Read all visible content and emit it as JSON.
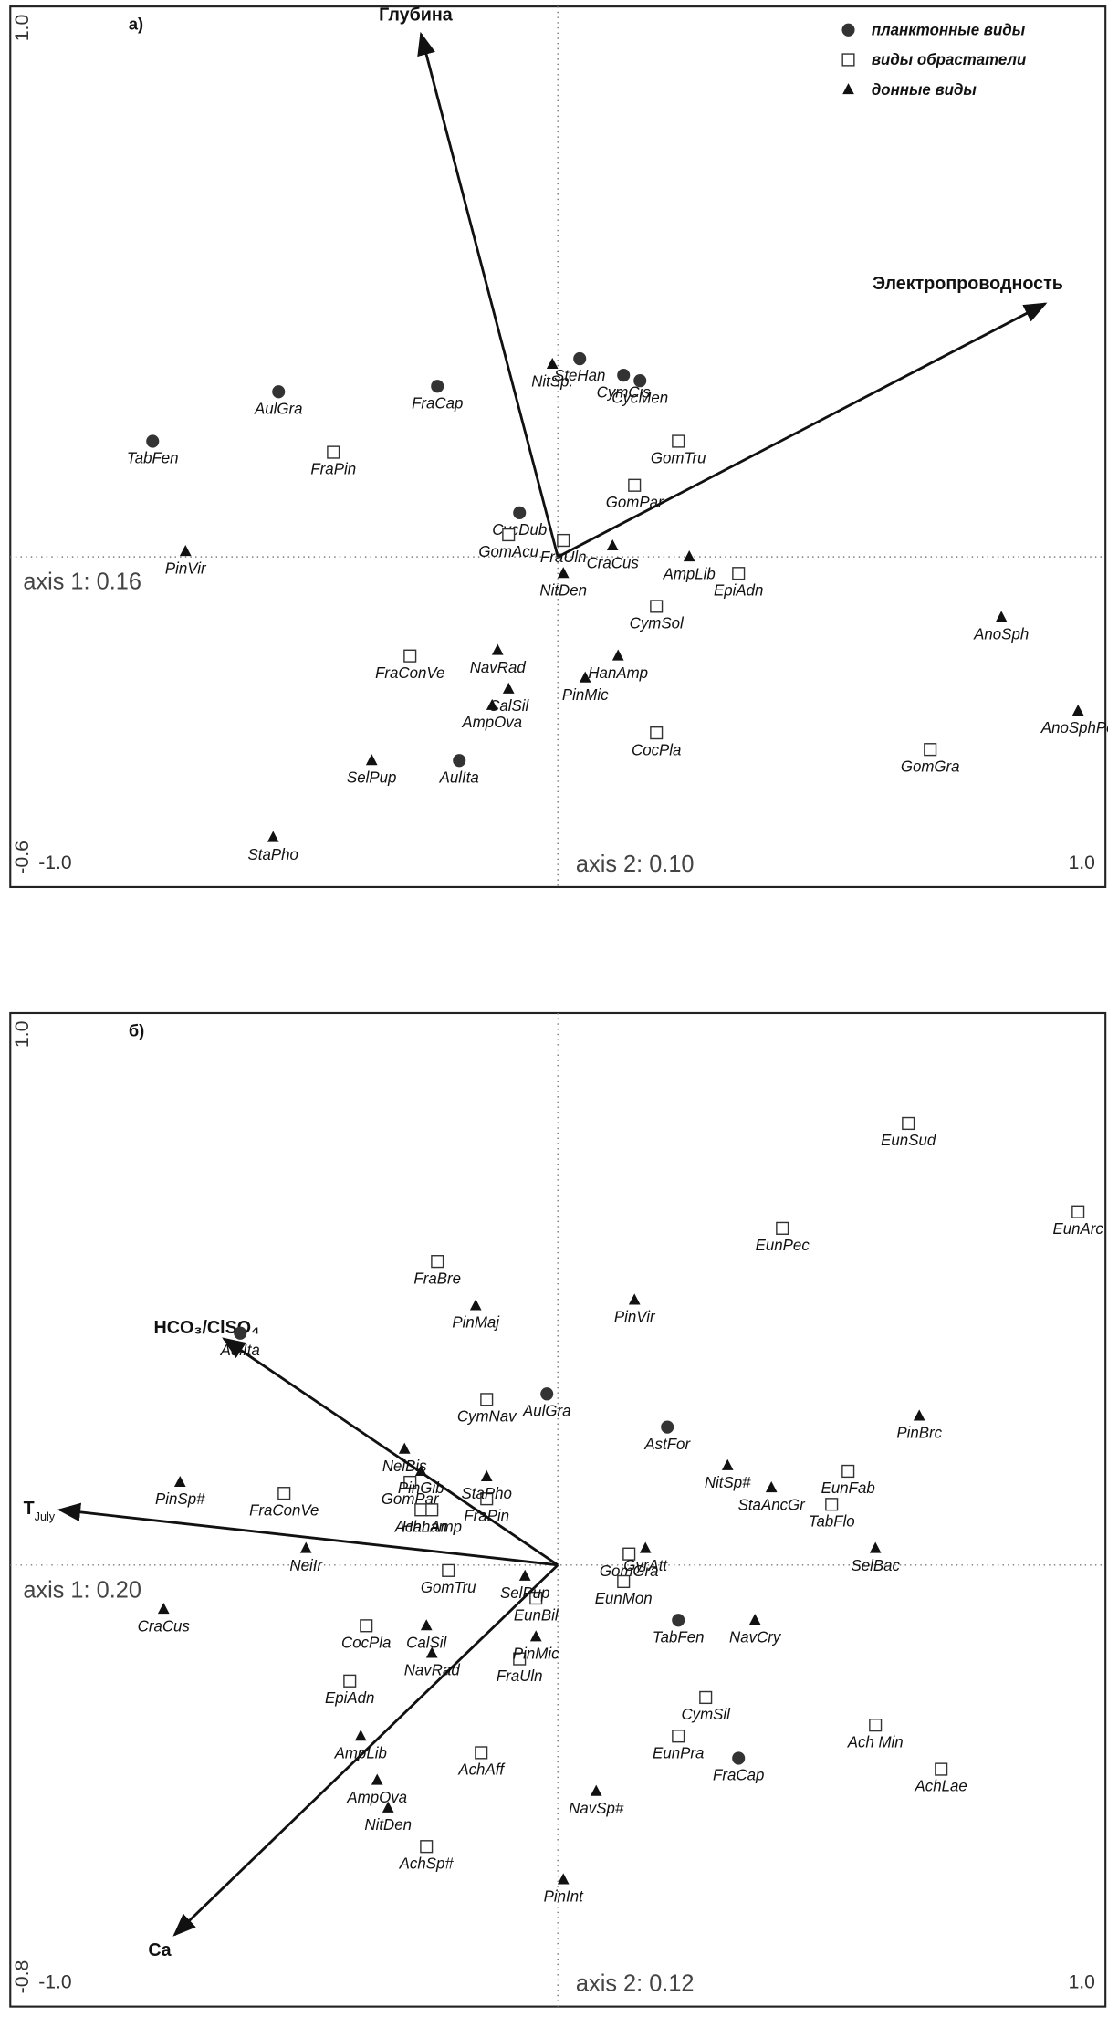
{
  "chart_data": [
    {
      "type": "scatter",
      "panel_label": "а)",
      "axis_labels": [
        "axis 1: 0.16",
        "axis 2: 0.10"
      ],
      "xlim": [
        -1.0,
        1.0
      ],
      "ylim": [
        -0.6,
        1.0
      ],
      "xticks": [
        {
          "value": -1.0,
          "label": "-1.0"
        },
        {
          "value": 1.0,
          "label": "1.0"
        }
      ],
      "yticks": [
        -0.6,
        {
          "value": 1.0,
          "label": "1.0"
        }
      ],
      "legend": "upper right",
      "series": [
        {
          "name": "планктонные виды",
          "marker": "circle",
          "color": "#333333",
          "labels": [
            "AulGra",
            "TabFen",
            "FraCap",
            "SteHan",
            "CymCis",
            "CycMen",
            "CycDub",
            "AulIta"
          ],
          "x": [
            -0.51,
            -0.74,
            -0.22,
            0.04,
            0.12,
            0.15,
            -0.07,
            -0.18
          ],
          "y": [
            0.3,
            0.21,
            0.31,
            0.36,
            0.33,
            0.32,
            0.08,
            -0.37
          ]
        },
        {
          "name": "виды обрастатели",
          "marker": "square",
          "color": "#333333",
          "labels": [
            "FraPin",
            "GomTru",
            "GomPar",
            "GomAcu",
            "FraUln",
            "EpiAdn",
            "CymSol",
            "FraConVe",
            "CocPla",
            "GomGra"
          ],
          "x": [
            -0.41,
            0.22,
            0.14,
            -0.09,
            0.01,
            0.33,
            0.18,
            -0.27,
            0.18,
            0.68
          ],
          "y": [
            0.19,
            0.21,
            0.13,
            0.04,
            0.03,
            -0.03,
            -0.09,
            -0.18,
            -0.32,
            -0.35
          ]
        },
        {
          "name": "донные виды",
          "marker": "triangle",
          "color": "#111111",
          "labels": [
            "NitSp.",
            "PinVir",
            "CraCus",
            "AmpLib",
            "NitDen",
            "AnoSph",
            "NavRad",
            "HanAmp",
            "PinMic",
            "CalSil",
            "AmpOva",
            "AnoSphPo",
            "SelPup",
            "StaPho"
          ],
          "x": [
            -0.01,
            -0.68,
            0.1,
            0.24,
            0.01,
            0.81,
            -0.11,
            0.11,
            0.05,
            -0.09,
            -0.12,
            0.95,
            -0.34,
            -0.52
          ],
          "y": [
            0.35,
            0.01,
            0.02,
            0.0,
            -0.03,
            -0.11,
            -0.17,
            -0.18,
            -0.22,
            -0.24,
            -0.27,
            -0.28,
            -0.37,
            -0.51
          ]
        }
      ],
      "arrows": [
        {
          "label": "Глубина",
          "x": -0.25,
          "y": 0.95
        },
        {
          "label": "Электропроводность",
          "x": 0.89,
          "y": 0.46
        }
      ]
    },
    {
      "type": "scatter",
      "panel_label": "б)",
      "axis_labels": [
        "axis 1: 0.20",
        "axis 2: 0.12"
      ],
      "xlim": [
        -1.0,
        1.0
      ],
      "ylim": [
        -0.8,
        1.0
      ],
      "xticks": [
        {
          "value": -1.0,
          "label": "-1.0"
        },
        {
          "value": 1.0,
          "label": "1.0"
        }
      ],
      "yticks": [
        -0.8,
        {
          "value": 1.0,
          "label": "1.0"
        }
      ],
      "series": [
        {
          "marker": "circle",
          "color": "#333333",
          "labels": [
            "AulIta",
            "AulGra",
            "AstFor",
            "TabFen",
            "FraCap"
          ],
          "x": [
            -0.58,
            -0.02,
            0.2,
            0.22,
            0.33
          ],
          "y": [
            0.42,
            0.31,
            0.25,
            -0.1,
            -0.35
          ]
        },
        {
          "marker": "square",
          "color": "#333333",
          "labels": [
            "EunSud",
            "EunArc",
            "EunPec",
            "FraBre",
            "CymNav",
            "EunFab",
            "TabFlo",
            "FraConVe",
            "GomPar",
            "FraPin",
            "AchLan",
            "HanAmp",
            "GomGra",
            "GomTru",
            "EunMon",
            "EunBil",
            "FraUln",
            "CocPla",
            "EpiAdn",
            "CymSil",
            "EunPra",
            "Ach Min",
            "AchLae",
            "AchAff",
            "AchSp#"
          ],
          "x": [
            0.64,
            0.95,
            0.41,
            -0.22,
            -0.13,
            0.53,
            0.5,
            -0.5,
            -0.27,
            -0.13,
            -0.25,
            -0.23,
            0.13,
            -0.2,
            0.12,
            -0.04,
            -0.07,
            -0.35,
            -0.38,
            0.27,
            0.22,
            0.58,
            0.7,
            -0.14,
            -0.24
          ],
          "y": [
            0.8,
            0.64,
            0.61,
            0.55,
            0.3,
            0.17,
            0.11,
            0.13,
            0.15,
            0.12,
            0.1,
            0.1,
            0.02,
            -0.01,
            -0.03,
            -0.06,
            -0.17,
            -0.11,
            -0.21,
            -0.24,
            -0.31,
            -0.29,
            -0.37,
            -0.34,
            -0.51
          ]
        },
        {
          "marker": "triangle",
          "color": "#111111",
          "labels": [
            "PinVir",
            "PinMaj",
            "PinBrc",
            "NitSp#",
            "StaAncGr",
            "PinSp#",
            "NeiBis",
            "PinGib",
            "StaPho",
            "NeiIr",
            "GyrAtt",
            "SelBac",
            "SelPup",
            "CraCus",
            "CalSil",
            "PinMic",
            "NavCry",
            "NavRad",
            "AmpLib",
            "AmpOva",
            "NitDen",
            "NavSp#",
            "PinInt"
          ],
          "x": [
            0.14,
            -0.15,
            0.66,
            0.31,
            0.39,
            -0.69,
            -0.28,
            -0.25,
            -0.13,
            -0.46,
            0.16,
            0.58,
            -0.06,
            -0.72,
            -0.24,
            -0.04,
            0.36,
            -0.23,
            -0.36,
            -0.33,
            -0.31,
            0.07,
            0.01
          ],
          "y": [
            0.48,
            0.47,
            0.27,
            0.18,
            0.14,
            0.15,
            0.21,
            0.17,
            0.16,
            0.03,
            0.03,
            0.03,
            -0.02,
            -0.08,
            -0.11,
            -0.13,
            -0.1,
            -0.16,
            -0.31,
            -0.39,
            -0.44,
            -0.41,
            -0.57
          ]
        }
      ],
      "arrows": [
        {
          "label": "HCO₃/ClSO₄",
          "x": -0.61,
          "y": 0.41
        },
        {
          "label": "T",
          "label_sub": "July",
          "x": -0.91,
          "y": 0.1
        },
        {
          "label": "Ca",
          "x": -0.7,
          "y": -0.67
        }
      ]
    }
  ]
}
